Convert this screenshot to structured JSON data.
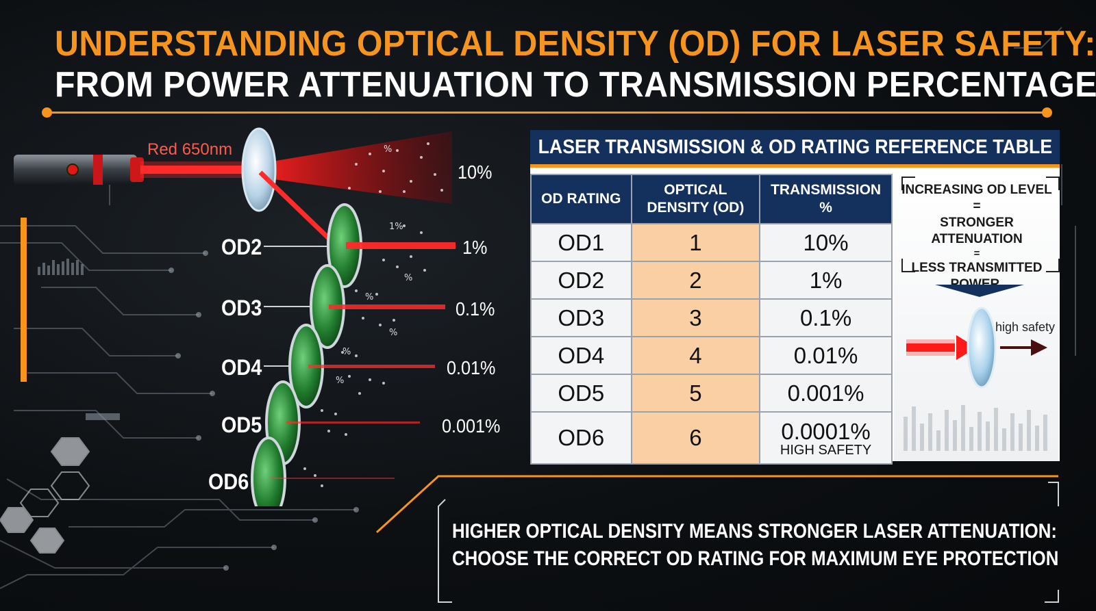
{
  "header": {
    "title_line1": "UNDERSTANDING OPTICAL DENSITY (OD) FOR LASER SAFETY:",
    "title_line2": "FROM POWER ATTENUATION TO TRANSMISSION PERCENTAGES."
  },
  "diagram": {
    "laser_label": "Red 650nm",
    "first_transmission": "10%",
    "filters": [
      {
        "label": "OD2",
        "transmission": "1%"
      },
      {
        "label": "OD3",
        "transmission": "0.1%"
      },
      {
        "label": "OD4",
        "transmission": "0.01%"
      },
      {
        "label": "OD5",
        "transmission": "0.001%"
      },
      {
        "label": "OD6",
        "transmission": ""
      }
    ],
    "scatter_marks": [
      "%",
      "1%",
      "%",
      "%",
      "%",
      "%",
      "%"
    ]
  },
  "reference_table": {
    "title": "LASER TRANSMISSION & OD RATING REFERENCE TABLE",
    "headers": [
      "OD RATING",
      "OPTICAL DENSITY (OD)",
      "TRANSMISSION %"
    ],
    "rows": [
      {
        "rating": "OD1",
        "density": "1",
        "transmission": "10%",
        "note": ""
      },
      {
        "rating": "OD2",
        "density": "2",
        "transmission": "1%",
        "note": ""
      },
      {
        "rating": "OD3",
        "density": "3",
        "transmission": "0.1%",
        "note": ""
      },
      {
        "rating": "OD4",
        "density": "4",
        "transmission": "0.01%",
        "note": ""
      },
      {
        "rating": "OD5",
        "density": "5",
        "transmission": "0.001%",
        "note": ""
      },
      {
        "rating": "OD6",
        "density": "6",
        "transmission": "0.0001%",
        "note": "HIGH SAFETY"
      }
    ],
    "side_note": {
      "line1": "INCREASING OD LEVEL =",
      "line2": "STRONGER ATTENUATION",
      "line3": "=",
      "line4": "LESS TRANSMITTED",
      "line5": "POWER.",
      "arrow_label": "high safety"
    }
  },
  "footer": {
    "line1": "HIGHER OPTICAL DENSITY MEANS STRONGER LASER ATTENUATION:",
    "line2": "CHOOSE THE CORRECT OD RATING FOR MAXIMUM EYE PROTECTION"
  },
  "colors": {
    "accent": "#f7941d",
    "laser": "#ff1a1a",
    "table_header": "#14305c",
    "density_cell": "#f9cfa3",
    "filter_green": "#2a8a3a"
  }
}
